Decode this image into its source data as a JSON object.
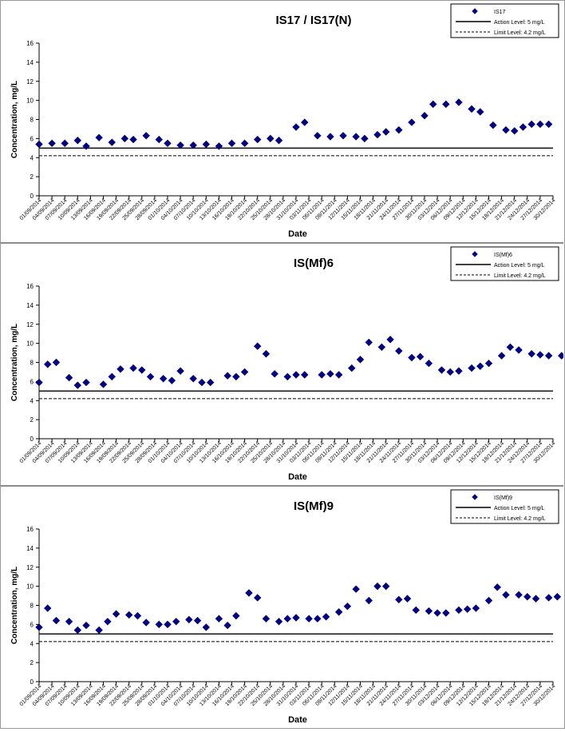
{
  "chart_data": [
    {
      "type": "scatter",
      "title": "IS17 / IS17(N)",
      "xlabel": "Date",
      "ylabel": "Concentration, mg/L",
      "ylim": [
        0,
        16
      ],
      "yticks": [
        "0",
        "2",
        "4",
        "6",
        "8",
        "10",
        "12",
        "14",
        "16"
      ],
      "xlim": [
        "2014-09-01",
        "2014-12-30"
      ],
      "xtick_labels": [
        "01/09/2014",
        "04/09/2014",
        "07/09/2014",
        "10/09/2014",
        "13/09/2014",
        "16/09/2014",
        "19/09/2014",
        "22/09/2014",
        "25/09/2014",
        "28/09/2014",
        "01/10/2014",
        "04/10/2014",
        "07/10/2014",
        "10/10/2014",
        "13/10/2014",
        "16/10/2014",
        "19/10/2014",
        "22/10/2014",
        "25/10/2014",
        "28/10/2014",
        "31/10/2014",
        "03/11/2014",
        "06/11/2014",
        "09/11/2014",
        "12/11/2014",
        "15/11/2014",
        "18/11/2014",
        "21/11/2014",
        "24/11/2014",
        "27/11/2014",
        "30/11/2014",
        "03/12/2014",
        "06/12/2014",
        "09/12/2014",
        "12/12/2014",
        "15/12/2014",
        "18/12/2014",
        "21/12/2014",
        "24/12/2014",
        "27/12/2014",
        "30/12/2014"
      ],
      "grid": false,
      "legend_position": "top-right",
      "series": [
        {
          "name": "IS17",
          "marker": "diamond",
          "color": "#000080",
          "points": [
            [
              "2014-09-01",
              5.4
            ],
            [
              "2014-09-04",
              5.5
            ],
            [
              "2014-09-07",
              5.5
            ],
            [
              "2014-09-10",
              5.8
            ],
            [
              "2014-09-12",
              5.2
            ],
            [
              "2014-09-15",
              6.1
            ],
            [
              "2014-09-18",
              5.6
            ],
            [
              "2014-09-21",
              6.0
            ],
            [
              "2014-09-23",
              5.9
            ],
            [
              "2014-09-26",
              6.3
            ],
            [
              "2014-09-29",
              5.9
            ],
            [
              "2014-10-01",
              5.5
            ],
            [
              "2014-10-04",
              5.3
            ],
            [
              "2014-10-07",
              5.3
            ],
            [
              "2014-10-10",
              5.4
            ],
            [
              "2014-10-13",
              5.2
            ],
            [
              "2014-10-16",
              5.5
            ],
            [
              "2014-10-19",
              5.5
            ],
            [
              "2014-10-22",
              5.9
            ],
            [
              "2014-10-25",
              6.0
            ],
            [
              "2014-10-27",
              5.8
            ],
            [
              "2014-10-31",
              7.2
            ],
            [
              "2014-11-02",
              7.7
            ],
            [
              "2014-11-05",
              6.3
            ],
            [
              "2014-11-08",
              6.2
            ],
            [
              "2014-11-11",
              6.3
            ],
            [
              "2014-11-14",
              6.2
            ],
            [
              "2014-11-16",
              6.0
            ],
            [
              "2014-11-19",
              6.4
            ],
            [
              "2014-11-21",
              6.7
            ],
            [
              "2014-11-24",
              6.9
            ],
            [
              "2014-11-27",
              7.7
            ],
            [
              "2014-11-30",
              8.4
            ],
            [
              "2014-12-02",
              9.6
            ],
            [
              "2014-12-05",
              9.6
            ],
            [
              "2014-12-08",
              9.8
            ],
            [
              "2014-12-11",
              9.1
            ],
            [
              "2014-12-13",
              8.8
            ],
            [
              "2014-12-16",
              7.4
            ],
            [
              "2014-12-19",
              6.9
            ],
            [
              "2014-12-21",
              6.8
            ],
            [
              "2014-12-23",
              7.2
            ],
            [
              "2014-12-25",
              7.5
            ],
            [
              "2014-12-27",
              7.5
            ],
            [
              "2014-12-29",
              7.5
            ]
          ]
        },
        {
          "name": "Action Level: 5 mg/L",
          "line": "solid",
          "value": 5
        },
        {
          "name": "Limit Level: 4.2 mg/L",
          "line": "dashed",
          "value": 4.2
        }
      ]
    },
    {
      "type": "scatter",
      "title": "IS(Mf)6",
      "xlabel": "Date",
      "ylabel": "Concentration, mg/L",
      "ylim": [
        0,
        16
      ],
      "yticks": [
        "0",
        "2",
        "4",
        "6",
        "8",
        "10",
        "12",
        "14",
        "16"
      ],
      "xlim": [
        "2014-09-01",
        "2014-12-30"
      ],
      "xtick_labels": [
        "01/09/2014",
        "04/09/2014",
        "07/09/2014",
        "10/09/2014",
        "13/09/2014",
        "16/09/2014",
        "19/09/2014",
        "22/09/2014",
        "25/09/2014",
        "28/09/2014",
        "01/10/2014",
        "04/10/2014",
        "07/10/2014",
        "10/10/2014",
        "13/10/2014",
        "16/10/2014",
        "19/10/2014",
        "22/10/2014",
        "25/10/2014",
        "28/10/2014",
        "31/10/2014",
        "03/11/2014",
        "06/11/2014",
        "09/11/2014",
        "12/11/2014",
        "15/11/2014",
        "18/11/2014",
        "21/11/2014",
        "24/11/2014",
        "27/11/2014",
        "30/11/2014",
        "03/12/2014",
        "06/12/2014",
        "09/12/2014",
        "12/12/2014",
        "15/12/2014",
        "18/12/2014",
        "21/12/2014",
        "24/12/2014",
        "27/12/2014",
        "30/12/2014"
      ],
      "grid": false,
      "legend_position": "top-right",
      "series": [
        {
          "name": "IS(Mf)6",
          "marker": "diamond",
          "color": "#000080",
          "points": [
            [
              "2014-09-01",
              5.9
            ],
            [
              "2014-09-03",
              7.8
            ],
            [
              "2014-09-05",
              8.0
            ],
            [
              "2014-09-08",
              6.4
            ],
            [
              "2014-09-10",
              5.6
            ],
            [
              "2014-09-12",
              5.9
            ],
            [
              "2014-09-16",
              5.7
            ],
            [
              "2014-09-18",
              6.5
            ],
            [
              "2014-09-20",
              7.3
            ],
            [
              "2014-09-23",
              7.4
            ],
            [
              "2014-09-25",
              7.2
            ],
            [
              "2014-09-27",
              6.5
            ],
            [
              "2014-09-30",
              6.3
            ],
            [
              "2014-10-02",
              6.1
            ],
            [
              "2014-10-04",
              7.1
            ],
            [
              "2014-10-07",
              6.3
            ],
            [
              "2014-10-09",
              5.9
            ],
            [
              "2014-10-11",
              5.9
            ],
            [
              "2014-10-15",
              6.6
            ],
            [
              "2014-10-17",
              6.5
            ],
            [
              "2014-10-19",
              7.0
            ],
            [
              "2014-10-22",
              9.7
            ],
            [
              "2014-10-24",
              8.9
            ],
            [
              "2014-10-26",
              6.8
            ],
            [
              "2014-10-29",
              6.5
            ],
            [
              "2014-10-31",
              6.7
            ],
            [
              "2014-11-02",
              6.7
            ],
            [
              "2014-11-06",
              6.7
            ],
            [
              "2014-11-08",
              6.8
            ],
            [
              "2014-11-10",
              6.7
            ],
            [
              "2014-11-13",
              7.4
            ],
            [
              "2014-11-15",
              8.3
            ],
            [
              "2014-11-17",
              10.1
            ],
            [
              "2014-11-20",
              9.6
            ],
            [
              "2014-11-22",
              10.4
            ],
            [
              "2014-11-24",
              9.2
            ],
            [
              "2014-11-27",
              8.5
            ],
            [
              "2014-11-29",
              8.6
            ],
            [
              "2014-12-01",
              7.9
            ],
            [
              "2014-12-04",
              7.2
            ],
            [
              "2014-12-06",
              7.0
            ],
            [
              "2014-12-08",
              7.1
            ],
            [
              "2014-12-11",
              7.4
            ],
            [
              "2014-12-13",
              7.6
            ],
            [
              "2014-12-15",
              7.9
            ],
            [
              "2014-12-18",
              8.7
            ],
            [
              "2014-12-20",
              9.6
            ],
            [
              "2014-12-22",
              9.3
            ],
            [
              "2014-12-25",
              8.9
            ],
            [
              "2014-12-27",
              8.8
            ],
            [
              "2014-12-29",
              8.7
            ],
            [
              "2015-01-01",
              8.7
            ],
            [
              "2015-01-03",
              8.7
            ]
          ]
        },
        {
          "name": "Action Level: 5 mg/L",
          "line": "solid",
          "value": 5
        },
        {
          "name": "Limit Level: 4.2 mg/L",
          "line": "dashed",
          "value": 4.2
        }
      ]
    },
    {
      "type": "scatter",
      "title": "IS(Mf)9",
      "xlabel": "Date",
      "ylabel": "Concentration, mg/L",
      "ylim": [
        0,
        16
      ],
      "yticks": [
        "0",
        "2",
        "4",
        "6",
        "8",
        "10",
        "12",
        "14",
        "16"
      ],
      "xlim": [
        "2014-09-01",
        "2014-12-30"
      ],
      "xtick_labels": [
        "01/09/2014",
        "04/09/2014",
        "07/09/2014",
        "10/09/2014",
        "13/09/2014",
        "16/09/2014",
        "19/09/2014",
        "22/09/2014",
        "25/09/2014",
        "28/09/2014",
        "01/10/2014",
        "04/10/2014",
        "07/10/2014",
        "10/10/2014",
        "13/10/2014",
        "16/10/2014",
        "19/10/2014",
        "22/10/2014",
        "25/10/2014",
        "28/10/2014",
        "31/10/2014",
        "03/11/2014",
        "06/11/2014",
        "09/11/2014",
        "12/11/2014",
        "15/11/2014",
        "18/11/2014",
        "21/11/2014",
        "24/11/2014",
        "27/11/2014",
        "30/11/2014",
        "03/12/2014",
        "06/12/2014",
        "09/12/2014",
        "12/12/2014",
        "15/12/2014",
        "18/12/2014",
        "21/12/2014",
        "24/12/2014",
        "27/12/2014",
        "30/12/2014"
      ],
      "grid": false,
      "legend_position": "top-right",
      "series": [
        {
          "name": "IS(Mf)9",
          "marker": "diamond",
          "color": "#000080",
          "points": [
            [
              "2014-09-01",
              5.7
            ],
            [
              "2014-09-03",
              7.7
            ],
            [
              "2014-09-05",
              6.4
            ],
            [
              "2014-09-08",
              6.3
            ],
            [
              "2014-09-10",
              5.4
            ],
            [
              "2014-09-12",
              5.9
            ],
            [
              "2014-09-15",
              5.4
            ],
            [
              "2014-09-17",
              6.3
            ],
            [
              "2014-09-19",
              7.1
            ],
            [
              "2014-09-22",
              7.0
            ],
            [
              "2014-09-24",
              6.9
            ],
            [
              "2014-09-26",
              6.2
            ],
            [
              "2014-09-29",
              6.0
            ],
            [
              "2014-10-01",
              6.0
            ],
            [
              "2014-10-03",
              6.3
            ],
            [
              "2014-10-06",
              6.5
            ],
            [
              "2014-10-08",
              6.4
            ],
            [
              "2014-10-10",
              5.7
            ],
            [
              "2014-10-13",
              6.6
            ],
            [
              "2014-10-15",
              5.9
            ],
            [
              "2014-10-17",
              6.9
            ],
            [
              "2014-10-20",
              9.3
            ],
            [
              "2014-10-22",
              8.8
            ],
            [
              "2014-10-24",
              6.6
            ],
            [
              "2014-10-27",
              6.3
            ],
            [
              "2014-10-29",
              6.6
            ],
            [
              "2014-10-31",
              6.7
            ],
            [
              "2014-11-03",
              6.6
            ],
            [
              "2014-11-05",
              6.6
            ],
            [
              "2014-11-07",
              6.8
            ],
            [
              "2014-11-10",
              7.3
            ],
            [
              "2014-11-12",
              7.9
            ],
            [
              "2014-11-14",
              9.7
            ],
            [
              "2014-11-17",
              8.5
            ],
            [
              "2014-11-19",
              10.0
            ],
            [
              "2014-11-21",
              10.0
            ],
            [
              "2014-11-24",
              8.6
            ],
            [
              "2014-11-26",
              8.7
            ],
            [
              "2014-11-28",
              7.5
            ],
            [
              "2014-12-01",
              7.4
            ],
            [
              "2014-12-03",
              7.2
            ],
            [
              "2014-12-05",
              7.2
            ],
            [
              "2014-12-08",
              7.5
            ],
            [
              "2014-12-10",
              7.6
            ],
            [
              "2014-12-12",
              7.7
            ],
            [
              "2014-12-15",
              8.5
            ],
            [
              "2014-12-17",
              9.9
            ],
            [
              "2014-12-19",
              9.1
            ],
            [
              "2014-12-22",
              9.1
            ],
            [
              "2014-12-24",
              8.9
            ],
            [
              "2014-12-26",
              8.7
            ],
            [
              "2014-12-29",
              8.8
            ],
            [
              "2014-12-31",
              8.9
            ]
          ]
        },
        {
          "name": "Action Level: 5 mg/L",
          "line": "solid",
          "value": 5
        },
        {
          "name": "Limit Level: 4.2 mg/L",
          "line": "dashed",
          "value": 4.2
        }
      ]
    }
  ]
}
